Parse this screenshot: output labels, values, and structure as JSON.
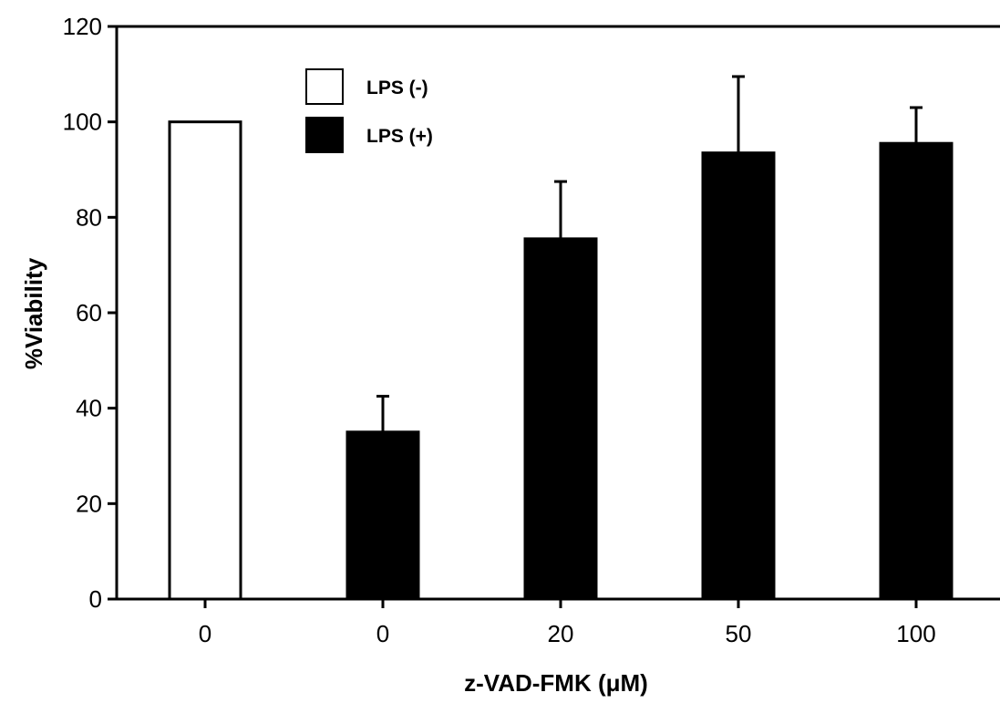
{
  "chart_data": {
    "type": "bar",
    "xlabel": "z-VAD-FMK (μM)",
    "ylabel": "%Viability",
    "ylim": [
      0,
      120
    ],
    "yticks": [
      0,
      20,
      40,
      60,
      80,
      100,
      120
    ],
    "grid": false,
    "legend_position": "top-left",
    "categories": [
      "0",
      "0",
      "20",
      "50",
      "100"
    ],
    "series": [
      {
        "name": "LPS (-)",
        "fill": "#ffffff",
        "values": [
          100,
          null,
          null,
          null,
          null
        ],
        "errors": [
          null,
          null,
          null,
          null,
          null
        ]
      },
      {
        "name": "LPS (+)",
        "fill": "#000000",
        "values": [
          null,
          35,
          75.5,
          93.5,
          95.5
        ],
        "errors": [
          null,
          7.5,
          12,
          16,
          7.5
        ]
      }
    ]
  }
}
